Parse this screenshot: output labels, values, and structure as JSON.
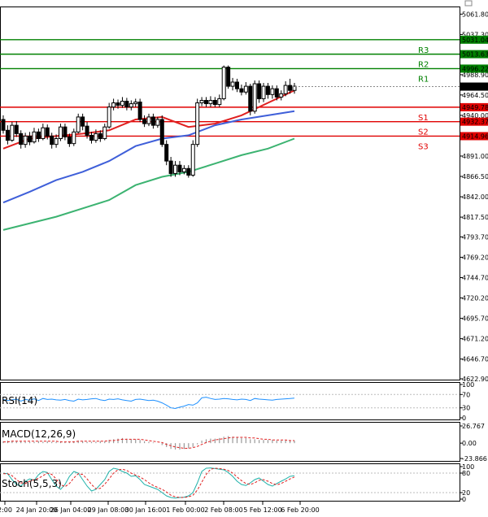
{
  "chart_data": {
    "type": "candlestick",
    "y_ticks": [
      "5061.80",
      "5037.30",
      "5013.63",
      "4988.90",
      "4964.50",
      "4940.00",
      "4915.50",
      "4891.00",
      "4866.50",
      "4842.00",
      "4817.50",
      "4793.70",
      "4769.20",
      "4744.70",
      "4720.20",
      "4695.70",
      "4671.20",
      "4646.70",
      "4622.90"
    ],
    "x_labels": [
      "2:00",
      "24 Jan 20:00",
      "26 Jan 04:00",
      "29 Jan 08:00",
      "30 Jan 16:00",
      "1 Feb 00:00",
      "2 Feb 08:00",
      "5 Feb 12:00",
      "6 Feb 20:00"
    ],
    "ylim": [
      4622.9,
      5070
    ],
    "price_label": "4974.58",
    "levels": [
      {
        "name": "R3",
        "value": 5031.04,
        "label": "5031.04",
        "color": "#008000"
      },
      {
        "name": "R2",
        "value": 5013.63,
        "label": "5013.63",
        "color": "#008000"
      },
      {
        "name": "R1",
        "value": 4996.22,
        "label": "4996.22",
        "color": "#008000"
      },
      {
        "name": "S1",
        "value": 4949.78,
        "label": "4949.78",
        "color": "#e00000"
      },
      {
        "name": "S2",
        "value": 4932.37,
        "label": "4932.37",
        "color": "#e00000"
      },
      {
        "name": "S3",
        "value": 4914.96,
        "label": "4914.96",
        "color": "#e00000"
      }
    ],
    "candles": [
      [
        4935,
        4922,
        4940,
        4918
      ],
      [
        4922,
        4910,
        4928,
        4905
      ],
      [
        4910,
        4928,
        4932,
        4908
      ],
      [
        4928,
        4918,
        4933,
        4914
      ],
      [
        4918,
        4905,
        4922,
        4900
      ],
      [
        4905,
        4915,
        4919,
        4901
      ],
      [
        4915,
        4908,
        4920,
        4904
      ],
      [
        4908,
        4920,
        4925,
        4906
      ],
      [
        4920,
        4912,
        4924,
        4908
      ],
      [
        4912,
        4925,
        4930,
        4910
      ],
      [
        4925,
        4915,
        4929,
        4911
      ],
      [
        4915,
        4905,
        4919,
        4900
      ],
      [
        4905,
        4912,
        4917,
        4901
      ],
      [
        4912,
        4926,
        4930,
        4909
      ],
      [
        4926,
        4914,
        4930,
        4910
      ],
      [
        4914,
        4906,
        4918,
        4902
      ],
      [
        4906,
        4920,
        4924,
        4903
      ],
      [
        4920,
        4938,
        4942,
        4918
      ],
      [
        4938,
        4927,
        4942,
        4922
      ],
      [
        4927,
        4916,
        4932,
        4912
      ],
      [
        4916,
        4910,
        4920,
        4906
      ],
      [
        4910,
        4918,
        4923,
        4907
      ],
      [
        4918,
        4912,
        4922,
        4908
      ],
      [
        4912,
        4926,
        4930,
        4910
      ],
      [
        4926,
        4950,
        4955,
        4924
      ],
      [
        4950,
        4955,
        4960,
        4946
      ],
      [
        4955,
        4952,
        4959,
        4948
      ],
      [
        4952,
        4957,
        4962,
        4949
      ],
      [
        4957,
        4950,
        4961,
        4946
      ],
      [
        4950,
        4954,
        4958,
        4946
      ],
      [
        4954,
        4956,
        4960,
        4950
      ],
      [
        4956,
        4935,
        4960,
        4932
      ],
      [
        4935,
        4930,
        4940,
        4926
      ],
      [
        4930,
        4938,
        4942,
        4927
      ],
      [
        4938,
        4928,
        4942,
        4924
      ],
      [
        4928,
        4935,
        4938,
        4925
      ],
      [
        4935,
        4905,
        4940,
        4902
      ],
      [
        4905,
        4885,
        4910,
        4880
      ],
      [
        4885,
        4870,
        4890,
        4866
      ],
      [
        4870,
        4880,
        4885,
        4866
      ],
      [
        4880,
        4872,
        4885,
        4868
      ],
      [
        4872,
        4876,
        4880,
        4869
      ],
      [
        4876,
        4868,
        4880,
        4865
      ],
      [
        4868,
        4905,
        4910,
        4866
      ],
      [
        4905,
        4955,
        4960,
        4902
      ],
      [
        4955,
        4958,
        4962,
        4951
      ],
      [
        4958,
        4954,
        4962,
        4950
      ],
      [
        4954,
        4958,
        4963,
        4950
      ],
      [
        4958,
        4953,
        4962,
        4950
      ],
      [
        4953,
        4960,
        4965,
        4950
      ],
      [
        4960,
        4998,
        5000,
        4958
      ],
      [
        4998,
        4975,
        5000,
        4972
      ],
      [
        4975,
        4980,
        4985,
        4970
      ],
      [
        4980,
        4972,
        4984,
        4968
      ],
      [
        4972,
        4968,
        4977,
        4964
      ],
      [
        4968,
        4975,
        4980,
        4965
      ],
      [
        4975,
        4945,
        4978,
        4940
      ],
      [
        4945,
        4978,
        4982,
        4942
      ],
      [
        4978,
        4960,
        4982,
        4955
      ],
      [
        4960,
        4975,
        4979,
        4956
      ],
      [
        4975,
        4965,
        4979,
        4960
      ],
      [
        4965,
        4972,
        4976,
        4960
      ],
      [
        4972,
        4962,
        4976,
        4958
      ],
      [
        4962,
        4966,
        4970,
        4958
      ],
      [
        4966,
        4976,
        4981,
        4963
      ],
      [
        4976,
        4970,
        4984,
        4966
      ],
      [
        4970,
        4975,
        4979,
        4966
      ]
    ],
    "ma_fast": [
      [
        0,
        4900
      ],
      [
        6,
        4912
      ],
      [
        12,
        4915
      ],
      [
        18,
        4918
      ],
      [
        24,
        4922
      ],
      [
        30,
        4935
      ],
      [
        36,
        4938
      ],
      [
        42,
        4926
      ],
      [
        48,
        4930
      ],
      [
        54,
        4940
      ],
      [
        60,
        4955
      ],
      [
        66,
        4970
      ]
    ],
    "ma_mid": [
      [
        0,
        4835
      ],
      [
        6,
        4848
      ],
      [
        12,
        4862
      ],
      [
        18,
        4872
      ],
      [
        24,
        4885
      ],
      [
        30,
        4903
      ],
      [
        36,
        4912
      ],
      [
        42,
        4916
      ],
      [
        48,
        4928
      ],
      [
        54,
        4935
      ],
      [
        60,
        4940
      ],
      [
        66,
        4945
      ]
    ],
    "ma_slow": [
      [
        0,
        4802
      ],
      [
        12,
        4818
      ],
      [
        24,
        4838
      ],
      [
        30,
        4856
      ],
      [
        36,
        4866
      ],
      [
        42,
        4872
      ],
      [
        48,
        4882
      ],
      [
        54,
        4892
      ],
      [
        60,
        4900
      ],
      [
        66,
        4912
      ]
    ],
    "rsi": {
      "title": "RSI(14)",
      "ticks": [
        "100",
        "70",
        "30",
        "0"
      ],
      "values": [
        55,
        52,
        54,
        56,
        50,
        55,
        53,
        57,
        52,
        58,
        55,
        56,
        54,
        53,
        55,
        52,
        50,
        56,
        54,
        55,
        57,
        58,
        54,
        52,
        56,
        55,
        57,
        54,
        52,
        50,
        55,
        56,
        54,
        52,
        53,
        50,
        45,
        38,
        30,
        28,
        32,
        35,
        40,
        38,
        45,
        60,
        62,
        58,
        55,
        56,
        58,
        57,
        55,
        54,
        56,
        55,
        52,
        58,
        56,
        55,
        54,
        53,
        55,
        56,
        57,
        58,
        59
      ]
    },
    "macd": {
      "title": "MACD(12,26,9)",
      "ticks": [
        "26.767",
        "0.00",
        "-23.866"
      ],
      "hist": [
        3,
        4,
        4,
        3,
        3,
        2,
        2,
        2,
        3,
        2,
        3,
        2,
        2,
        3,
        2,
        2,
        3,
        4,
        3,
        2,
        2,
        2,
        3,
        3,
        5,
        6,
        7,
        8,
        7,
        6,
        6,
        5,
        3,
        2,
        1,
        0,
        -3,
        -6,
        -9,
        -10,
        -10,
        -9,
        -8,
        -6,
        -2,
        4,
        6,
        7,
        7,
        8,
        10,
        11,
        10,
        9,
        8,
        8,
        6,
        6,
        5,
        5,
        5,
        5,
        4,
        4,
        4,
        4,
        4
      ],
      "signal": [
        2,
        2,
        3,
        3,
        3,
        3,
        3,
        3,
        3,
        3,
        3,
        3,
        3,
        2,
        2,
        2,
        2,
        3,
        3,
        3,
        3,
        3,
        3,
        3,
        4,
        4,
        5,
        6,
        6,
        6,
        6,
        6,
        5,
        4,
        3,
        2,
        1,
        -2,
        -4,
        -6,
        -7,
        -8,
        -8,
        -7,
        -5,
        -2,
        1,
        3,
        5,
        6,
        7,
        8,
        9,
        9,
        9,
        9,
        8,
        8,
        7,
        6,
        6,
        5,
        5,
        5,
        5,
        4,
        4
      ]
    },
    "stoch": {
      "title": "Stoch(5,5,3)",
      "ticks": [
        "100",
        "80",
        "20",
        "0"
      ],
      "main": [
        80,
        78,
        60,
        45,
        40,
        55,
        62,
        58,
        75,
        85,
        82,
        60,
        40,
        30,
        45,
        70,
        85,
        80,
        60,
        40,
        25,
        30,
        45,
        60,
        85,
        95,
        92,
        85,
        80,
        70,
        72,
        60,
        45,
        40,
        35,
        30,
        20,
        10,
        5,
        3,
        5,
        6,
        10,
        20,
        50,
        85,
        95,
        96,
        94,
        92,
        90,
        82,
        70,
        55,
        45,
        42,
        50,
        60,
        65,
        55,
        45,
        40,
        48,
        55,
        62,
        70,
        72
      ],
      "signal": [
        78,
        78,
        72,
        60,
        50,
        48,
        55,
        60,
        64,
        72,
        80,
        76,
        62,
        45,
        38,
        48,
        65,
        78,
        76,
        62,
        45,
        32,
        33,
        46,
        62,
        80,
        90,
        92,
        88,
        80,
        74,
        68,
        60,
        50,
        42,
        36,
        30,
        22,
        12,
        7,
        5,
        5,
        7,
        12,
        28,
        52,
        76,
        92,
        95,
        94,
        92,
        88,
        80,
        68,
        57,
        48,
        45,
        50,
        58,
        60,
        55,
        48,
        44,
        48,
        55,
        62,
        68
      ]
    }
  }
}
